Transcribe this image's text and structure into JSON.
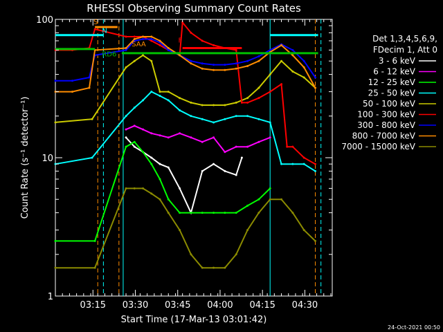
{
  "chart_data": {
    "type": "line",
    "title": "RHESSI Observing Summary Count Rates",
    "xlabel": "Start Time (17-Mar-13 03:01:42)",
    "ylabel": "Count Rate (s⁻¹ detector⁻¹)",
    "ylog": true,
    "ylim": [
      1,
      100
    ],
    "xlim_minutes": [
      0,
      98
    ],
    "x_ticks": [
      {
        "label": "03:15",
        "minute": 13.3
      },
      {
        "label": "03:30",
        "minute": 28.3
      },
      {
        "label": "03:45",
        "minute": 43.3
      },
      {
        "label": "04:00",
        "minute": 58.3
      },
      {
        "label": "04:15",
        "minute": 73.3
      },
      {
        "label": "04:30",
        "minute": 88.3
      }
    ],
    "y_ticks": [
      {
        "label": "1",
        "value": 1
      },
      {
        "label": "10",
        "value": 10
      },
      {
        "label": "100",
        "value": 100
      }
    ],
    "legend_header": [
      "Det 1,3,4,5,6,9,",
      "FDecim 1, Att 0"
    ],
    "series": [
      {
        "name": "3 - 6 keV",
        "color": "#ffffff",
        "x": [
          25,
          28,
          31,
          34,
          37,
          40,
          44,
          48,
          52,
          56,
          60,
          64,
          66
        ],
        "y": [
          14,
          12,
          11,
          10,
          9,
          8.5,
          6,
          4,
          8,
          9,
          8,
          7.5,
          10
        ]
      },
      {
        "name": "6 - 12 keV",
        "color": "#ff00ff",
        "x": [
          25,
          28,
          31,
          34,
          37,
          40,
          44,
          48,
          52,
          56,
          60,
          64,
          68,
          72,
          76
        ],
        "y": [
          16,
          17,
          16,
          15,
          14.5,
          14,
          15,
          14,
          13,
          14,
          11,
          12,
          12,
          13,
          14
        ]
      },
      {
        "name": "12 - 25 keV",
        "color": "#00ff00",
        "x": [
          0,
          14,
          25,
          28,
          31,
          34,
          37,
          40,
          44,
          48,
          52,
          56,
          60,
          64,
          68,
          72,
          76
        ],
        "y": [
          2.5,
          2.5,
          12,
          13,
          11,
          9,
          7,
          5,
          4,
          4,
          4,
          4,
          4,
          4,
          4.5,
          5,
          6
        ]
      },
      {
        "name": "25 - 50 keV",
        "color": "#00ffff",
        "x": [
          0,
          13,
          25,
          28,
          31,
          34,
          37,
          40,
          44,
          48,
          52,
          56,
          60,
          64,
          68,
          72,
          76,
          80,
          84,
          88,
          92
        ],
        "y": [
          9,
          10,
          20,
          23,
          26,
          30,
          28,
          26,
          22,
          20,
          19,
          18,
          19,
          20,
          20,
          19,
          18,
          9,
          9,
          9,
          8
        ]
      },
      {
        "name": "50 - 100 keV",
        "color": "#cccc00",
        "x": [
          0,
          13,
          25,
          28,
          31,
          34,
          37,
          40,
          44,
          48,
          52,
          56,
          60,
          64,
          68,
          72,
          76,
          80,
          84,
          88,
          92
        ],
        "y": [
          18,
          19,
          45,
          50,
          55,
          50,
          30,
          30,
          27,
          25,
          24,
          24,
          24,
          25,
          27,
          32,
          40,
          50,
          42,
          38,
          32
        ]
      },
      {
        "name": "100 - 300 keV",
        "color": "#ff0000",
        "x": [
          0,
          6,
          12,
          14,
          25,
          28,
          31,
          34,
          37,
          40,
          44,
          45,
          48,
          52,
          56,
          60,
          64,
          66,
          68,
          72,
          76,
          80,
          82,
          84,
          88,
          92
        ],
        "y": [
          60,
          60,
          62,
          85,
          75,
          75,
          75,
          70,
          65,
          60,
          55,
          95,
          80,
          70,
          65,
          62,
          60,
          25,
          25,
          27,
          30,
          34,
          12,
          12,
          10,
          9
        ]
      },
      {
        "name": "300 - 800 keV",
        "color": "#0000ff",
        "x": [
          0,
          6,
          12,
          14,
          25,
          28,
          31,
          34,
          37,
          40,
          44,
          48,
          52,
          56,
          60,
          64,
          68,
          72,
          76,
          80,
          84,
          88,
          92
        ],
        "y": [
          36,
          36,
          38,
          55,
          60,
          70,
          72,
          72,
          68,
          60,
          55,
          50,
          48,
          47,
          47,
          48,
          50,
          54,
          60,
          66,
          60,
          50,
          38
        ]
      },
      {
        "name": "800 - 7000 keV",
        "color": "#ff8c00",
        "x": [
          0,
          6,
          12,
          14,
          25,
          28,
          31,
          34,
          37,
          40,
          44,
          48,
          52,
          56,
          60,
          64,
          68,
          72,
          76,
          80,
          84,
          88,
          92
        ],
        "y": [
          30,
          30,
          32,
          60,
          62,
          72,
          75,
          75,
          70,
          62,
          55,
          48,
          44,
          43,
          43,
          44,
          46,
          50,
          58,
          65,
          55,
          45,
          32
        ]
      },
      {
        "name": "7000 - 15000 keV",
        "color": "#8b8b00",
        "x": [
          0,
          14,
          25,
          28,
          31,
          34,
          37,
          40,
          44,
          48,
          52,
          56,
          60,
          64,
          68,
          72,
          76,
          80,
          84,
          88,
          92
        ],
        "y": [
          1.6,
          1.6,
          6,
          6,
          6,
          5.5,
          5,
          4,
          3,
          2,
          1.6,
          1.6,
          1.6,
          2,
          3,
          4,
          5,
          5,
          4,
          3,
          2.5
        ]
      }
    ],
    "annotations": [
      {
        "text": "S",
        "color": "#ff8c00",
        "minute": 13.5,
        "value": 92
      },
      {
        "text": "N",
        "color": "#00ffff",
        "minute": 16.5,
        "value": 80
      },
      {
        "text": "SAA",
        "color": "#ff8c00",
        "minute": 27,
        "value": 64
      },
      {
        "text": "RD6",
        "color": "#00c000",
        "minute": 16.5,
        "value": 54
      },
      {
        "text": "F",
        "color": "#ff0000",
        "minute": 43.5,
        "value": 68
      }
    ],
    "flag_bars": [
      {
        "color": "#00ffff",
        "from": 0,
        "to": 17,
        "value": 77
      },
      {
        "color": "#00ffff",
        "from": 76,
        "to": 93,
        "value": 77
      },
      {
        "color": "#ff8c00",
        "from": 14,
        "to": 22,
        "value": 88
      },
      {
        "color": "#00c000",
        "from": 0,
        "to": 14,
        "value": 61
      },
      {
        "color": "#00c000",
        "from": 23.5,
        "to": 93,
        "value": 57
      },
      {
        "color": "#ff0000",
        "from": 45,
        "to": 66,
        "value": 62
      }
    ],
    "vlines": [
      {
        "color": "#ff8c00",
        "minute": 15,
        "dashed": true
      },
      {
        "color": "#00ffff",
        "minute": 17,
        "dashed": true
      },
      {
        "color": "#ff8c00",
        "minute": 22.5,
        "dashed": true
      },
      {
        "color": "#00ffff",
        "minute": 24,
        "dashed": false
      },
      {
        "color": "#00ffff",
        "minute": 76,
        "dashed": false
      },
      {
        "color": "#ff8c00",
        "minute": 92,
        "dashed": true
      },
      {
        "color": "#00ffff",
        "minute": 94,
        "dashed": true
      }
    ]
  },
  "footer": {
    "timestamp": "24-Oct-2021 00:50"
  }
}
